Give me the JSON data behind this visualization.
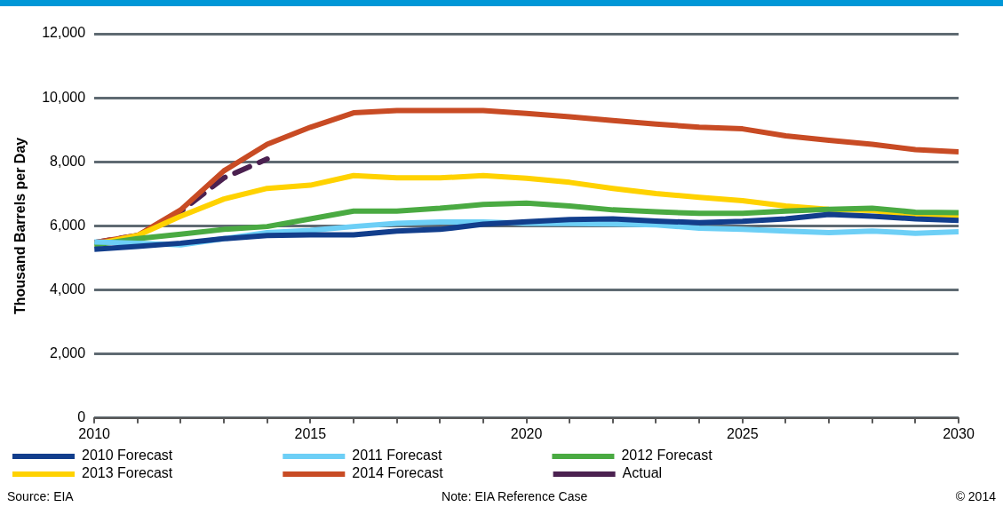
{
  "chart_data": {
    "type": "line",
    "ylabel": "Thousand Barrels per Day",
    "x": [
      2010,
      2011,
      2012,
      2013,
      2014,
      2015,
      2016,
      2017,
      2018,
      2019,
      2020,
      2021,
      2022,
      2023,
      2024,
      2025,
      2026,
      2027,
      2028,
      2029,
      2030
    ],
    "series": [
      {
        "name": "2010 Forecast",
        "color": "#123e8c",
        "values": [
          5270,
          5360,
          5460,
          5600,
          5700,
          5720,
          5720,
          5840,
          5890,
          6050,
          6130,
          6200,
          6220,
          6150,
          6100,
          6140,
          6220,
          6360,
          6300,
          6220,
          6170
        ]
      },
      {
        "name": "2011 Forecast",
        "color": "#6dcff6",
        "values": [
          5500,
          5460,
          5410,
          5600,
          5790,
          5860,
          5980,
          6080,
          6120,
          6120,
          6080,
          6070,
          6060,
          6030,
          5930,
          5890,
          5840,
          5790,
          5840,
          5770,
          5820
        ]
      },
      {
        "name": "2012 Forecast",
        "color": "#4aaa42",
        "values": [
          5410,
          5600,
          5740,
          5890,
          5980,
          6220,
          6460,
          6460,
          6550,
          6670,
          6710,
          6620,
          6500,
          6440,
          6390,
          6390,
          6460,
          6520,
          6550,
          6430,
          6410
        ]
      },
      {
        "name": "2013 Forecast",
        "color": "#ffd200",
        "values": [
          5420,
          5700,
          6300,
          6840,
          7170,
          7270,
          7570,
          7500,
          7500,
          7570,
          7490,
          7360,
          7170,
          7010,
          6890,
          6790,
          6620,
          6520,
          6480,
          6330,
          6300
        ]
      },
      {
        "name": "2014 Forecast",
        "color": "#c84b24",
        "values": [
          5480,
          5700,
          6500,
          7720,
          8550,
          9080,
          9530,
          9600,
          9600,
          9600,
          9510,
          9410,
          9290,
          9180,
          9080,
          9030,
          8810,
          8670,
          8550,
          8380,
          8310
        ]
      },
      {
        "name": "Actual",
        "color": "#4b2150",
        "line_style": "dashed",
        "x": [
          2010,
          2011,
          2012,
          2013,
          2014
        ],
        "values": [
          5480,
          5700,
          6450,
          7500,
          8090
        ]
      }
    ],
    "xlim": [
      2010,
      2030
    ],
    "xticks": [
      2010,
      {
        "value": 2011,
        "label": null
      },
      {
        "value": 2012,
        "label": null
      },
      {
        "value": 2013,
        "label": null
      },
      {
        "value": 2014,
        "label": null
      },
      2015,
      {
        "value": 2016,
        "label": null
      },
      {
        "value": 2017,
        "label": null
      },
      {
        "value": 2018,
        "label": null
      },
      {
        "value": 2019,
        "label": null
      },
      2020,
      {
        "value": 2021,
        "label": null
      },
      {
        "value": 2022,
        "label": null
      },
      {
        "value": 2023,
        "label": null
      },
      {
        "value": 2024,
        "label": null
      },
      2025,
      {
        "value": 2026,
        "label": null
      },
      {
        "value": 2027,
        "label": null
      },
      {
        "value": 2028,
        "label": null
      },
      {
        "value": 2029,
        "label": null
      },
      2030
    ],
    "ylim": [
      0,
      12000
    ],
    "yticks": [
      0,
      {
        "value": 2000,
        "label": "2,000"
      },
      {
        "value": 4000,
        "label": "4,000"
      },
      {
        "value": 6000,
        "label": "6,000"
      },
      {
        "value": 8000,
        "label": "8,000"
      },
      {
        "value": 10000,
        "label": "10,000"
      },
      {
        "value": 12000,
        "label": "12,000"
      }
    ],
    "grid": "y",
    "legend": "bottom",
    "marker": "none",
    "line_style": "solid",
    "annotations": [
      "Source: EIA",
      "Note: EIA Reference Case",
      "© 2014"
    ]
  }
}
